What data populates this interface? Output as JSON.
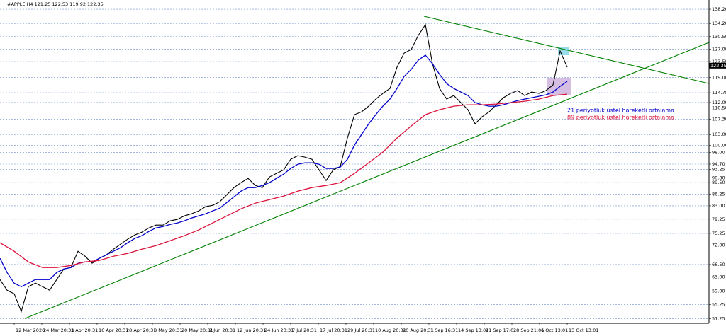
{
  "chart_data": {
    "type": "line",
    "title": "#APPLE,H4  121.25 122.53 119.92 122.35",
    "current_price": 122.35,
    "xlim": [
      0,
      100
    ],
    "ylim": [
      50.0,
      139.8
    ],
    "xticks": [
      {
        "value": 2.0,
        "label": "12 Mar 2020"
      },
      {
        "value": 5.9,
        "label": "24 Mar 20:31"
      },
      {
        "value": 9.8,
        "label": "3 Apr 20:31"
      },
      {
        "value": 13.7,
        "label": "16 Apr 20:31"
      },
      {
        "value": 17.6,
        "label": "28 Apr 20:31"
      },
      {
        "value": 21.5,
        "label": "8 May 20:31"
      },
      {
        "value": 25.4,
        "label": "20 May 20:31"
      },
      {
        "value": 29.3,
        "label": "2 Jun 20:31"
      },
      {
        "value": 33.2,
        "label": "12 Jun 20:31"
      },
      {
        "value": 37.1,
        "label": "24 Jun 20:31"
      },
      {
        "value": 41.0,
        "label": "7 Jul 20:31"
      },
      {
        "value": 44.9,
        "label": "17 Jul 20:31"
      },
      {
        "value": 48.8,
        "label": "29 Jul 20:31"
      },
      {
        "value": 52.7,
        "label": "10 Aug 20:31"
      },
      {
        "value": 56.6,
        "label": "20 Aug 20:31"
      },
      {
        "value": 60.5,
        "label": "1 Sep 16:31"
      },
      {
        "value": 64.4,
        "label": "14 Sep 13:01"
      },
      {
        "value": 68.3,
        "label": "21 Sep 17:01"
      },
      {
        "value": 72.2,
        "label": "28 Sep 21:01"
      },
      {
        "value": 76.1,
        "label": "6 Oct 13:01"
      },
      {
        "value": 80.0,
        "label": "13 Oct 13:01"
      }
    ],
    "yticks": [
      {
        "value": 138.2,
        "label": "138.20"
      },
      {
        "value": 134.2,
        "label": "134.20"
      },
      {
        "value": 130.5,
        "label": "130.50"
      },
      {
        "value": 127.0,
        "label": "127.00"
      },
      {
        "value": 123.5,
        "label": "123.50"
      },
      {
        "value": 119.0,
        "label": "119.00"
      },
      {
        "value": 114.75,
        "label": "114.75"
      },
      {
        "value": 112.0,
        "label": "112.00"
      },
      {
        "value": 110.5,
        "label": "110.50"
      },
      {
        "value": 107.3,
        "label": "107.30"
      },
      {
        "value": 103.0,
        "label": "103.00"
      },
      {
        "value": 100.0,
        "label": "100.00"
      },
      {
        "value": 98.0,
        "label": "98.00"
      },
      {
        "value": 94.7,
        "label": "94.70"
      },
      {
        "value": 93.25,
        "label": "93.25"
      },
      {
        "value": 90.8,
        "label": "90.80"
      },
      {
        "value": 89.5,
        "label": "89.50"
      },
      {
        "value": 86.25,
        "label": "86.25"
      },
      {
        "value": 83.0,
        "label": "83.00"
      },
      {
        "value": 79.25,
        "label": "79.25"
      },
      {
        "value": 75.25,
        "label": "75.25"
      },
      {
        "value": 72.0,
        "label": "72.00"
      },
      {
        "value": 66.5,
        "label": "66.50"
      },
      {
        "value": 63.0,
        "label": "63.00"
      },
      {
        "value": 59.0,
        "label": "59.00"
      },
      {
        "value": 55.25,
        "label": "55.25"
      },
      {
        "value": 51.25,
        "label": "51.25"
      }
    ],
    "grid": true,
    "series": [
      {
        "color": "#000000",
        "x": [
          0,
          1,
          2,
          3,
          4,
          5,
          6,
          7,
          8,
          9,
          10,
          11,
          12,
          13,
          14,
          15,
          16,
          17,
          18,
          19,
          20,
          21,
          22,
          23,
          24,
          25,
          26,
          27,
          28,
          29,
          30,
          31,
          32,
          33,
          34,
          35,
          36,
          37,
          38,
          39,
          40,
          41,
          42,
          43,
          44,
          45,
          46,
          47,
          48,
          49,
          50,
          51,
          52,
          53,
          54,
          55,
          56,
          57,
          58,
          59,
          60,
          61,
          62,
          63,
          64,
          65,
          66,
          67,
          68,
          69,
          70,
          71,
          72,
          73,
          74,
          75,
          76,
          77,
          78,
          79,
          80
        ],
        "values": [
          62.27,
          59.28,
          58.29,
          53.32,
          60.28,
          61.27,
          60.28,
          59.28,
          62.27,
          65.25,
          65.64,
          70.22,
          68.83,
          66.84,
          68.23,
          69.22,
          70.81,
          72.21,
          73.6,
          74.79,
          75.59,
          76.78,
          77.57,
          77.57,
          78.77,
          79.16,
          80.16,
          80.75,
          81.55,
          82.74,
          83.14,
          84.13,
          86.12,
          88.11,
          89.5,
          90.69,
          88.71,
          88.11,
          91.09,
          92.09,
          93.08,
          96.06,
          97.06,
          96.66,
          96.06,
          93.08,
          90.1,
          93.08,
          94.07,
          102.03,
          108.59,
          109.38,
          110.97,
          112.96,
          114.55,
          115.94,
          121.91,
          125.88,
          126.88,
          130.85,
          133.84,
          122.9,
          115.94,
          112.96,
          113.96,
          111.97,
          109.98,
          106.0,
          107.99,
          109.38,
          111.37,
          113.36,
          114.55,
          115.35,
          113.96,
          114.95,
          114.55,
          115.35,
          116.94,
          126.48,
          121.91
        ]
      },
      {
        "name": "21 periyotluk üstel hareketli ortalama",
        "color": "#0000cc",
        "x": [
          0,
          1,
          2,
          3,
          4,
          5,
          6,
          7,
          8,
          9,
          10,
          11,
          12,
          13,
          14,
          15,
          16,
          17,
          18,
          19,
          20,
          21,
          22,
          23,
          24,
          25,
          26,
          27,
          28,
          29,
          30,
          31,
          32,
          33,
          34,
          35,
          36,
          37,
          38,
          39,
          40,
          41,
          42,
          43,
          44,
          45,
          46,
          47,
          48,
          49,
          50,
          51,
          52,
          53,
          54,
          55,
          56,
          57,
          58,
          59,
          60,
          61,
          62,
          63,
          64,
          65,
          66,
          67,
          68,
          69,
          70,
          71,
          72,
          73,
          74,
          75,
          76,
          77,
          78,
          79,
          80
        ],
        "values": [
          68.23,
          64.25,
          61.27,
          60.28,
          61.27,
          62.27,
          62.27,
          62.27,
          64.25,
          65.25,
          65.64,
          66.84,
          67.23,
          67.23,
          68.23,
          69.22,
          70.22,
          71.21,
          72.6,
          73.8,
          74.59,
          75.79,
          76.78,
          77.18,
          77.77,
          78.17,
          78.77,
          79.56,
          80.16,
          80.76,
          81.55,
          82.35,
          83.94,
          85.53,
          87.12,
          88.11,
          88.11,
          88.71,
          89.5,
          90.7,
          91.89,
          93.48,
          94.67,
          95.07,
          95.07,
          94.67,
          93.48,
          93.48,
          93.88,
          96.06,
          100.04,
          103.02,
          106.0,
          108.59,
          110.97,
          112.96,
          115.94,
          119.32,
          121.31,
          123.9,
          125.29,
          122.9,
          119.92,
          117.34,
          115.94,
          114.95,
          113.96,
          111.97,
          111.37,
          110.97,
          110.97,
          111.37,
          111.97,
          112.56,
          112.96,
          113.36,
          113.76,
          114.15,
          114.95,
          116.54,
          117.93
        ]
      },
      {
        "name": "89 periyotluk üstel hareketli ortalama",
        "color": "#dc143c",
        "x": [
          0,
          2,
          4,
          6,
          8,
          10,
          12,
          14,
          16,
          18,
          20,
          22,
          24,
          26,
          28,
          30,
          32,
          34,
          36,
          38,
          40,
          42,
          44,
          46,
          48,
          50,
          52,
          54,
          56,
          58,
          60,
          62,
          64,
          66,
          68,
          70,
          72,
          74,
          76,
          78,
          80
        ],
        "values": [
          72.6,
          70.22,
          67.23,
          65.65,
          65.65,
          66.24,
          67.23,
          67.64,
          68.83,
          69.62,
          70.82,
          71.81,
          73.2,
          74.59,
          76.18,
          78.17,
          80.16,
          82.15,
          83.74,
          84.73,
          85.73,
          87.12,
          88.11,
          88.71,
          89.5,
          92.09,
          95.07,
          98.05,
          102.03,
          105.41,
          108.59,
          109.98,
          110.97,
          111.37,
          111.37,
          111.57,
          111.97,
          112.37,
          112.96,
          113.96,
          114.35
        ]
      },
      {
        "color": "#008000",
        "x": [
          3.5,
          100
        ],
        "values": [
          51.33,
          128.87
        ]
      },
      {
        "color": "#008000",
        "x": [
          59.8,
          100
        ],
        "values": [
          136.22,
          117.34
        ]
      }
    ]
  }
}
